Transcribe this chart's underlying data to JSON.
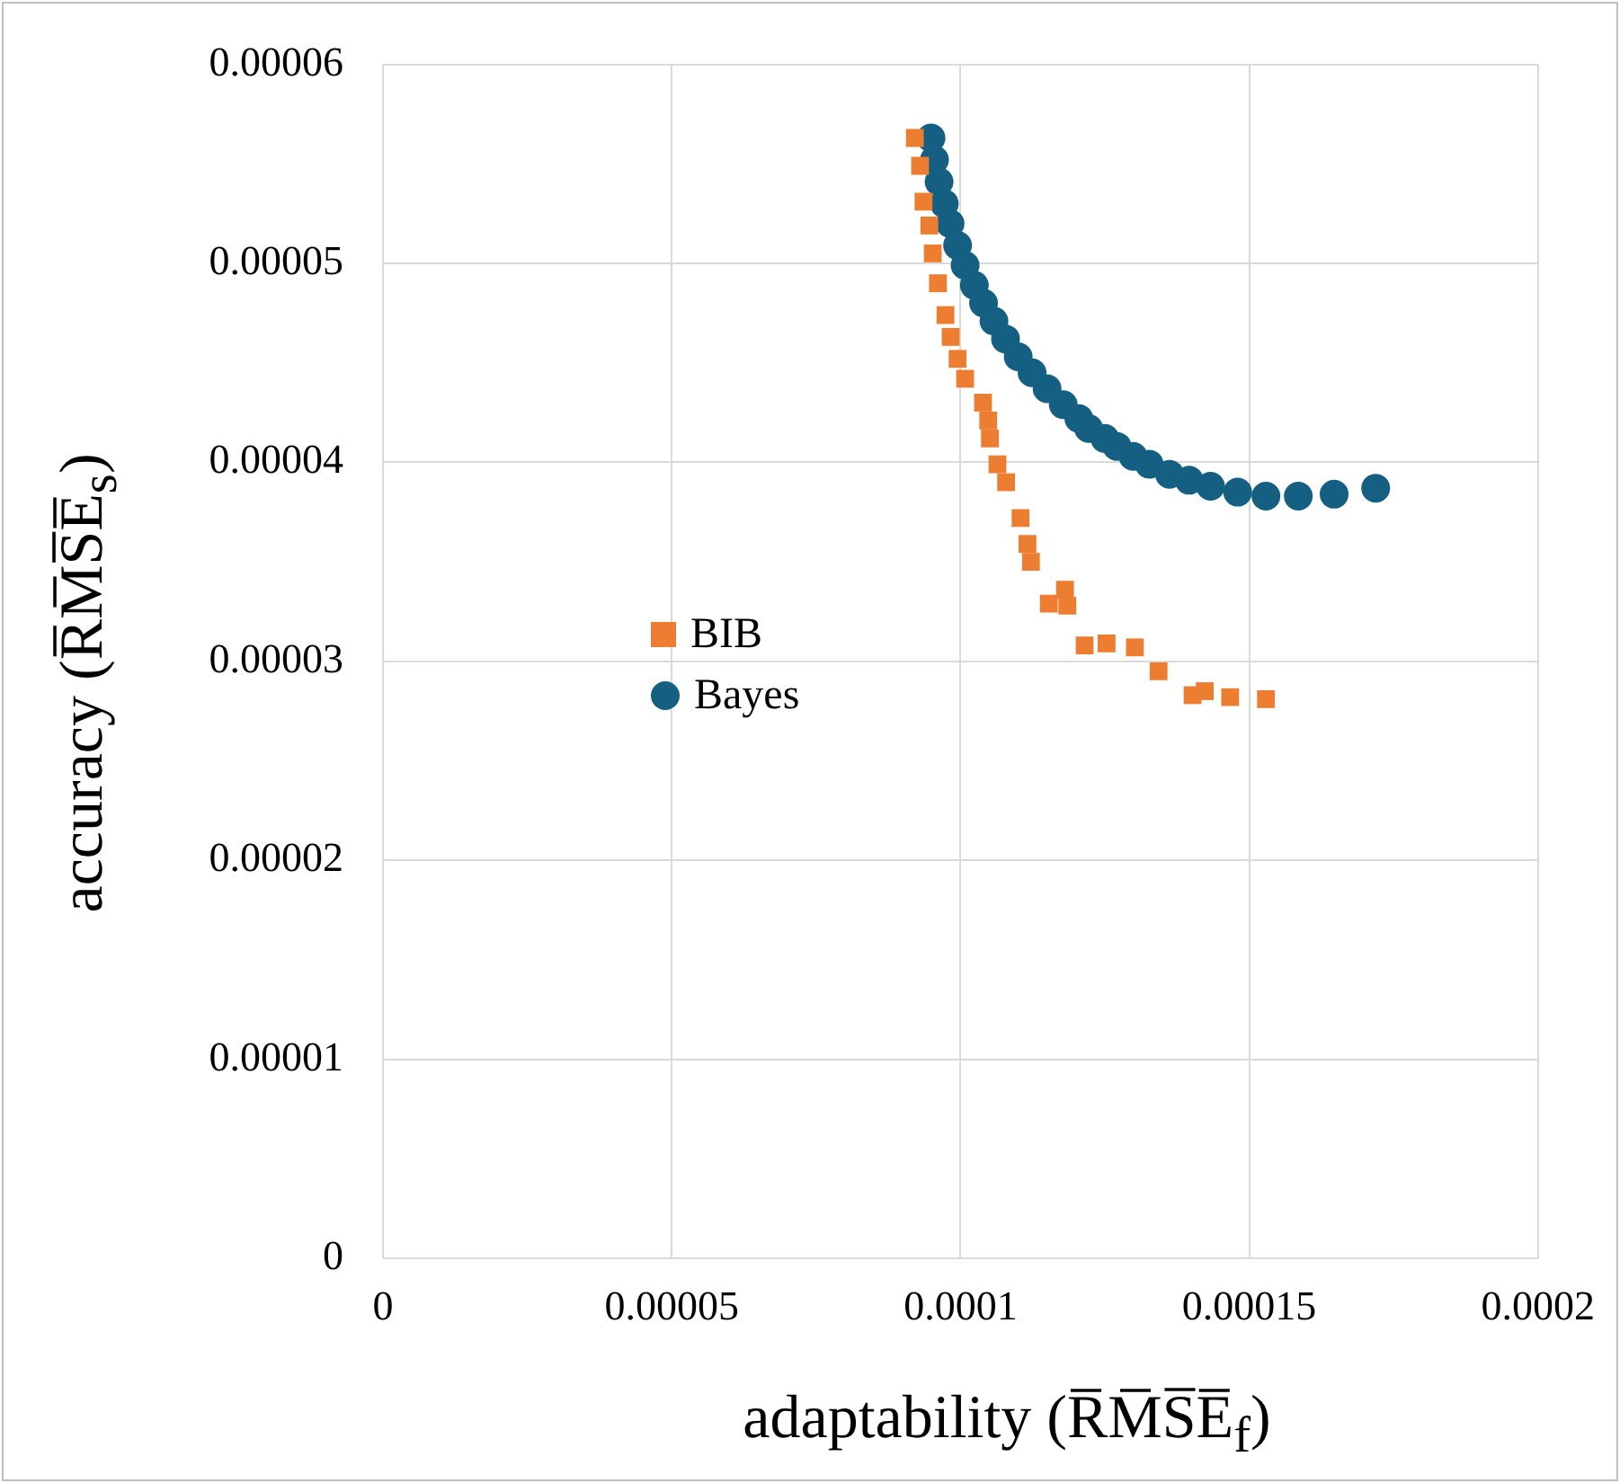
{
  "chart_data": {
    "type": "scatter",
    "xlabel": "adaptability (R̅M̅S̅E̅$_{f}$)",
    "ylabel": "accuracy (R̅M̅S̅E̅$_{s}$)",
    "xlim": [
      0,
      0.0002
    ],
    "ylim": [
      0,
      6e-05
    ],
    "xticks": [
      0,
      {
        "value": 5e-05,
        "label": "0.00005"
      },
      {
        "value": 0.0001,
        "label": "0.0001"
      },
      {
        "value": 0.00015,
        "label": "0.00015"
      },
      {
        "value": 0.0002,
        "label": "0.0002"
      }
    ],
    "yticks": [
      0,
      {
        "value": 1e-05,
        "label": "0.00001"
      },
      {
        "value": 2e-05,
        "label": "0.00002"
      },
      {
        "value": 3e-05,
        "label": "0.00003"
      },
      {
        "value": 4e-05,
        "label": "0.00004"
      },
      {
        "value": 5e-05,
        "label": "0.00005"
      },
      {
        "value": 6e-05,
        "label": "0.00006"
      }
    ],
    "grid": true,
    "legend": "left",
    "series": [
      {
        "name": "BIB",
        "color": "#ed7d31",
        "marker": "square",
        "x": [
          9.21e-05,
          9.3e-05,
          9.36e-05,
          9.46e-05,
          9.52e-05,
          9.61e-05,
          9.74e-05,
          9.83e-05,
          9.95e-05,
          0.0001008,
          0.0001039,
          0.0001048,
          0.0001051,
          0.0001064,
          0.0001079,
          0.0001104,
          0.0001116,
          0.0001122,
          0.0001153,
          0.0001181,
          0.0001185,
          0.0001215,
          0.0001253,
          0.0001302,
          0.0001343,
          0.0001402,
          0.0001423,
          0.0001467,
          0.0001529
        ],
        "values": [
          5.63e-05,
          5.49e-05,
          5.31e-05,
          5.19e-05,
          5.05e-05,
          4.9e-05,
          4.74e-05,
          4.63e-05,
          4.52e-05,
          4.42e-05,
          4.3e-05,
          4.21e-05,
          4.12e-05,
          3.99e-05,
          3.9e-05,
          3.72e-05,
          3.59e-05,
          3.5e-05,
          3.29e-05,
          3.36e-05,
          3.28e-05,
          3.08e-05,
          3.09e-05,
          3.07e-05,
          2.95e-05,
          2.83e-05,
          2.85e-05,
          2.82e-05,
          2.81e-05
        ]
      },
      {
        "name": "Bayes",
        "color": "#156082",
        "marker": "circle",
        "x": [
          9.49e-05,
          9.55e-05,
          9.63e-05,
          9.72e-05,
          9.82e-05,
          9.95e-05,
          0.0001008,
          0.0001024,
          0.000104,
          0.0001058,
          0.0001078,
          0.00011,
          0.0001124,
          0.000115,
          0.0001178,
          0.0001205,
          0.0001222,
          0.000125,
          0.0001271,
          0.0001299,
          0.0001327,
          0.0001362,
          0.0001396,
          0.0001433,
          0.000148,
          0.0001529,
          0.0001585,
          0.0001647,
          0.0001719
        ],
        "values": [
          5.63e-05,
          5.52e-05,
          5.41e-05,
          5.3e-05,
          5.2e-05,
          5.09e-05,
          4.99e-05,
          4.89e-05,
          4.8e-05,
          4.71e-05,
          4.62e-05,
          4.53e-05,
          4.45e-05,
          4.37e-05,
          4.29e-05,
          4.22e-05,
          4.17e-05,
          4.12e-05,
          4.08e-05,
          4.03e-05,
          3.99e-05,
          3.94e-05,
          3.91e-05,
          3.88e-05,
          3.85e-05,
          3.83e-05,
          3.83e-05,
          3.84e-05,
          3.87e-05
        ]
      }
    ]
  }
}
